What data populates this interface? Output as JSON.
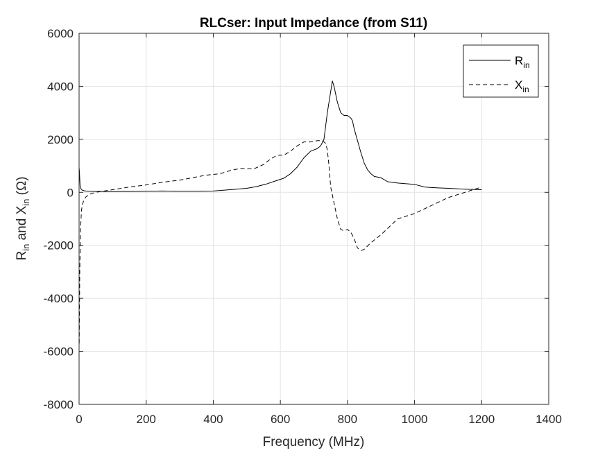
{
  "chart_data": {
    "type": "line",
    "title": "RLCser: Input Impedance (from S11)",
    "xlabel": "Frequency (MHz)",
    "ylabel": {
      "parts": [
        {
          "text": "R",
          "sub": false
        },
        {
          "text": "in",
          "sub": true
        },
        {
          "text": " and X",
          "sub": false
        },
        {
          "text": "in",
          "sub": true
        },
        {
          "text": " (Ω)",
          "sub": false
        }
      ]
    },
    "xlim": [
      0,
      1400
    ],
    "ylim": [
      -8000,
      6000
    ],
    "xticks": [
      0,
      200,
      400,
      600,
      800,
      1000,
      1200,
      1400
    ],
    "xtick_labels": [
      "0",
      "200",
      "400",
      "600",
      "800",
      "1000",
      "1200",
      "1400"
    ],
    "yticks": [
      -8000,
      -6000,
      -4000,
      -2000,
      0,
      2000,
      4000,
      6000
    ],
    "ytick_labels": [
      "-8000",
      "-6000",
      "-4000",
      "-2000",
      "0",
      "2000",
      "4000",
      "6000"
    ],
    "grid": true,
    "legend_position": "top-right",
    "series": [
      {
        "name": "R",
        "name_sub": "in",
        "style": "solid",
        "color": "#000000",
        "x": [
          0.5,
          3,
          6,
          10,
          15,
          20,
          30,
          50,
          100,
          150,
          200,
          250,
          300,
          350,
          400,
          430,
          460,
          500,
          530,
          560,
          590,
          610,
          630,
          650,
          670,
          690,
          710,
          720,
          730,
          740,
          750,
          755,
          760,
          765,
          770,
          780,
          790,
          800,
          810,
          815,
          820,
          830,
          840,
          850,
          860,
          870,
          880,
          900,
          920,
          950,
          1000,
          1030,
          1050,
          1100,
          1150,
          1200
        ],
        "y": [
          900,
          250,
          120,
          80,
          60,
          50,
          40,
          35,
          30,
          35,
          40,
          50,
          40,
          40,
          50,
          80,
          110,
          150,
          220,
          320,
          450,
          530,
          700,
          950,
          1300,
          1550,
          1650,
          1750,
          2000,
          3000,
          3800,
          4200,
          4000,
          3700,
          3400,
          3000,
          2900,
          2900,
          2800,
          2700,
          2400,
          1950,
          1500,
          1100,
          850,
          700,
          600,
          550,
          400,
          350,
          300,
          200,
          180,
          150,
          120,
          100
        ]
      },
      {
        "name": "X",
        "name_sub": "in",
        "style": "dashed",
        "color": "#000000",
        "x": [
          0.5,
          2,
          4,
          7,
          10,
          15,
          20,
          30,
          50,
          80,
          100,
          150,
          200,
          250,
          300,
          350,
          380,
          420,
          450,
          480,
          520,
          550,
          570,
          590,
          610,
          630,
          650,
          670,
          690,
          710,
          725,
          735,
          740,
          745,
          750,
          760,
          770,
          780,
          790,
          800,
          810,
          820,
          830,
          840,
          850,
          870,
          900,
          950,
          1000,
          1050,
          1100,
          1150,
          1200
        ],
        "y": [
          -5700,
          -3000,
          -1500,
          -700,
          -450,
          -280,
          -180,
          -80,
          0,
          60,
          100,
          200,
          280,
          380,
          460,
          580,
          650,
          700,
          820,
          900,
          880,
          1050,
          1250,
          1400,
          1400,
          1550,
          1750,
          1900,
          1900,
          1950,
          1950,
          1850,
          1600,
          1000,
          200,
          -400,
          -1000,
          -1400,
          -1450,
          -1400,
          -1500,
          -1750,
          -2100,
          -2200,
          -2150,
          -1900,
          -1600,
          -1000,
          -800,
          -500,
          -200,
          0,
          200
        ]
      }
    ]
  }
}
